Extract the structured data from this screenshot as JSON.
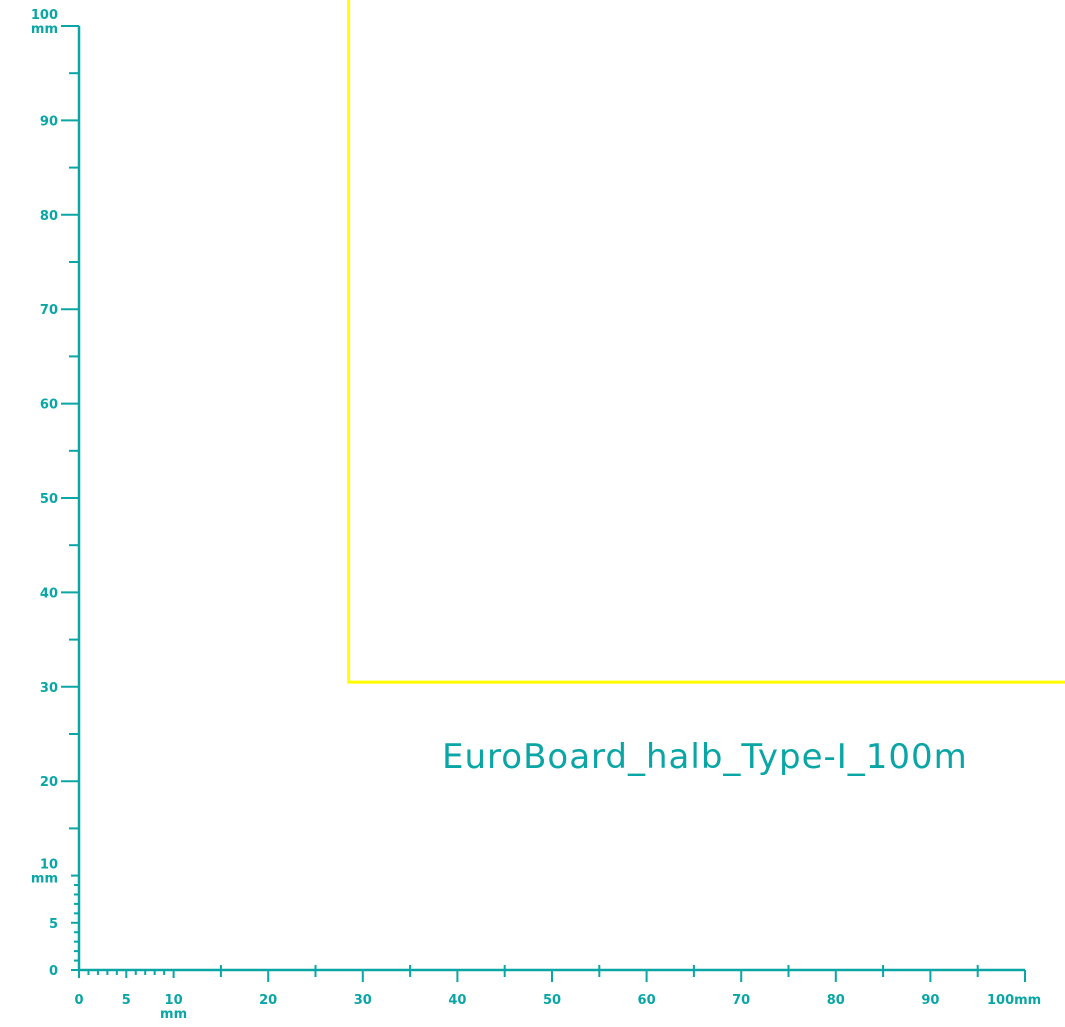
{
  "colors": {
    "ruler": "#0aa5a5",
    "board_outline": "#ffff00",
    "background": "#ffffff"
  },
  "board_label": "EuroBoard_halb_Type-I_100m",
  "board_outline_mm": {
    "x_start": 28.5,
    "y_top": 30.5
  },
  "y_axis": {
    "max_mm": 100,
    "unit": "mm",
    "labels": [
      {
        "value": 0,
        "text": "0"
      },
      {
        "value": 5,
        "text": "5"
      },
      {
        "value": 10,
        "text": "10"
      },
      {
        "value": 20,
        "text": "20"
      },
      {
        "value": 30,
        "text": "30"
      },
      {
        "value": 40,
        "text": "40"
      },
      {
        "value": 50,
        "text": "50"
      },
      {
        "value": 60,
        "text": "60"
      },
      {
        "value": 70,
        "text": "70"
      },
      {
        "value": 80,
        "text": "80"
      },
      {
        "value": 90,
        "text": "90"
      },
      {
        "value": 100,
        "text": "100"
      }
    ],
    "unit_at": [
      10,
      100
    ]
  },
  "x_axis": {
    "max_mm": 100,
    "unit": "mm",
    "labels": [
      {
        "value": 0,
        "text": "0"
      },
      {
        "value": 5,
        "text": "5"
      },
      {
        "value": 10,
        "text": "10"
      },
      {
        "value": 20,
        "text": "20"
      },
      {
        "value": 30,
        "text": "30"
      },
      {
        "value": 40,
        "text": "40"
      },
      {
        "value": 50,
        "text": "50"
      },
      {
        "value": 60,
        "text": "60"
      },
      {
        "value": 70,
        "text": "70"
      },
      {
        "value": 80,
        "text": "80"
      },
      {
        "value": 90,
        "text": "90"
      },
      {
        "value": 100,
        "text": "100mm"
      }
    ],
    "unit_at": [
      10
    ]
  }
}
